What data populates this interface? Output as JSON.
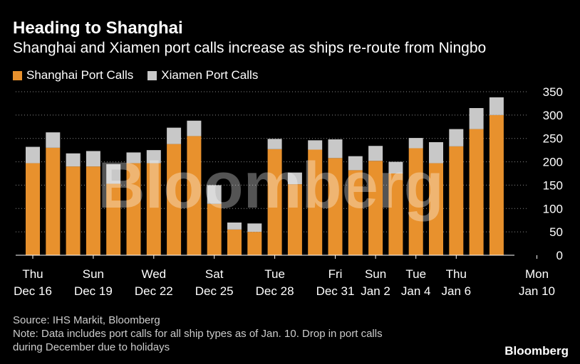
{
  "header": {
    "title": "Heading to Shanghai",
    "subtitle": "Shanghai and Xiamen port calls increase as ships re-route from Ningbo"
  },
  "colors": {
    "shanghai": "#E8912D",
    "xiamen": "#C8C8C8",
    "grid": "#888888"
  },
  "chart_data": {
    "type": "bar",
    "stacked": true,
    "title": "Heading to Shanghai",
    "subtitle": "Shanghai and Xiamen port calls increase as ships re-route from Ningbo",
    "xlabel": "",
    "ylabel": "",
    "ylim": [
      0,
      350
    ],
    "yticks": [
      0,
      50,
      100,
      150,
      200,
      250,
      300,
      350
    ],
    "grid": "horizontal dotted",
    "legend_position": "top-left",
    "categories": [
      "Dec 16",
      "Dec 17",
      "Dec 18",
      "Dec 19",
      "Dec 20",
      "Dec 21",
      "Dec 22",
      "Dec 23",
      "Dec 24",
      "Dec 25",
      "Dec 26",
      "Dec 27",
      "Dec 28",
      "Dec 29",
      "Dec 30",
      "Dec 31",
      "Jan 1",
      "Jan 2",
      "Jan 3",
      "Jan 4",
      "Jan 5",
      "Jan 6",
      "Jan 7",
      "Jan 8",
      "Jan 9",
      "Jan 10"
    ],
    "x_tick_labels": [
      {
        "index": 0,
        "day": "Thu",
        "date": "Dec 16"
      },
      {
        "index": 3,
        "day": "Sun",
        "date": "Dec 19"
      },
      {
        "index": 6,
        "day": "Wed",
        "date": "Dec 22"
      },
      {
        "index": 9,
        "day": "Sat",
        "date": "Dec 25"
      },
      {
        "index": 12,
        "day": "Tue",
        "date": "Dec 28"
      },
      {
        "index": 15,
        "day": "Fri",
        "date": "Dec 31"
      },
      {
        "index": 17,
        "day": "Sun",
        "date": "Jan 2"
      },
      {
        "index": 19,
        "day": "Tue",
        "date": "Jan 4"
      },
      {
        "index": 21,
        "day": "Thu",
        "date": "Jan 6"
      },
      {
        "index": 25,
        "day": "Mon",
        "date": "Jan 10"
      }
    ],
    "series": [
      {
        "name": "Shanghai Port Calls",
        "values": [
          197,
          230,
          190,
          190,
          153,
          197,
          197,
          238,
          255,
          110,
          55,
          50,
          227,
          152,
          226,
          208,
          182,
          202,
          175,
          229,
          197,
          233,
          270,
          300,
          0,
          0
        ]
      },
      {
        "name": "Xiamen Port Calls",
        "values": [
          35,
          33,
          28,
          33,
          42,
          23,
          28,
          35,
          33,
          40,
          15,
          18,
          22,
          25,
          20,
          40,
          30,
          32,
          25,
          22,
          45,
          37,
          45,
          38,
          0,
          0
        ]
      }
    ]
  },
  "footer": {
    "source": "Source: IHS Markit, Bloomberg",
    "note_line1": "Note: Data includes port calls for all ship types as of Jan. 10. Drop in port calls",
    "note_line2": "during December due to holidays"
  },
  "brand": "Bloomberg",
  "watermark": "Bloomberg"
}
